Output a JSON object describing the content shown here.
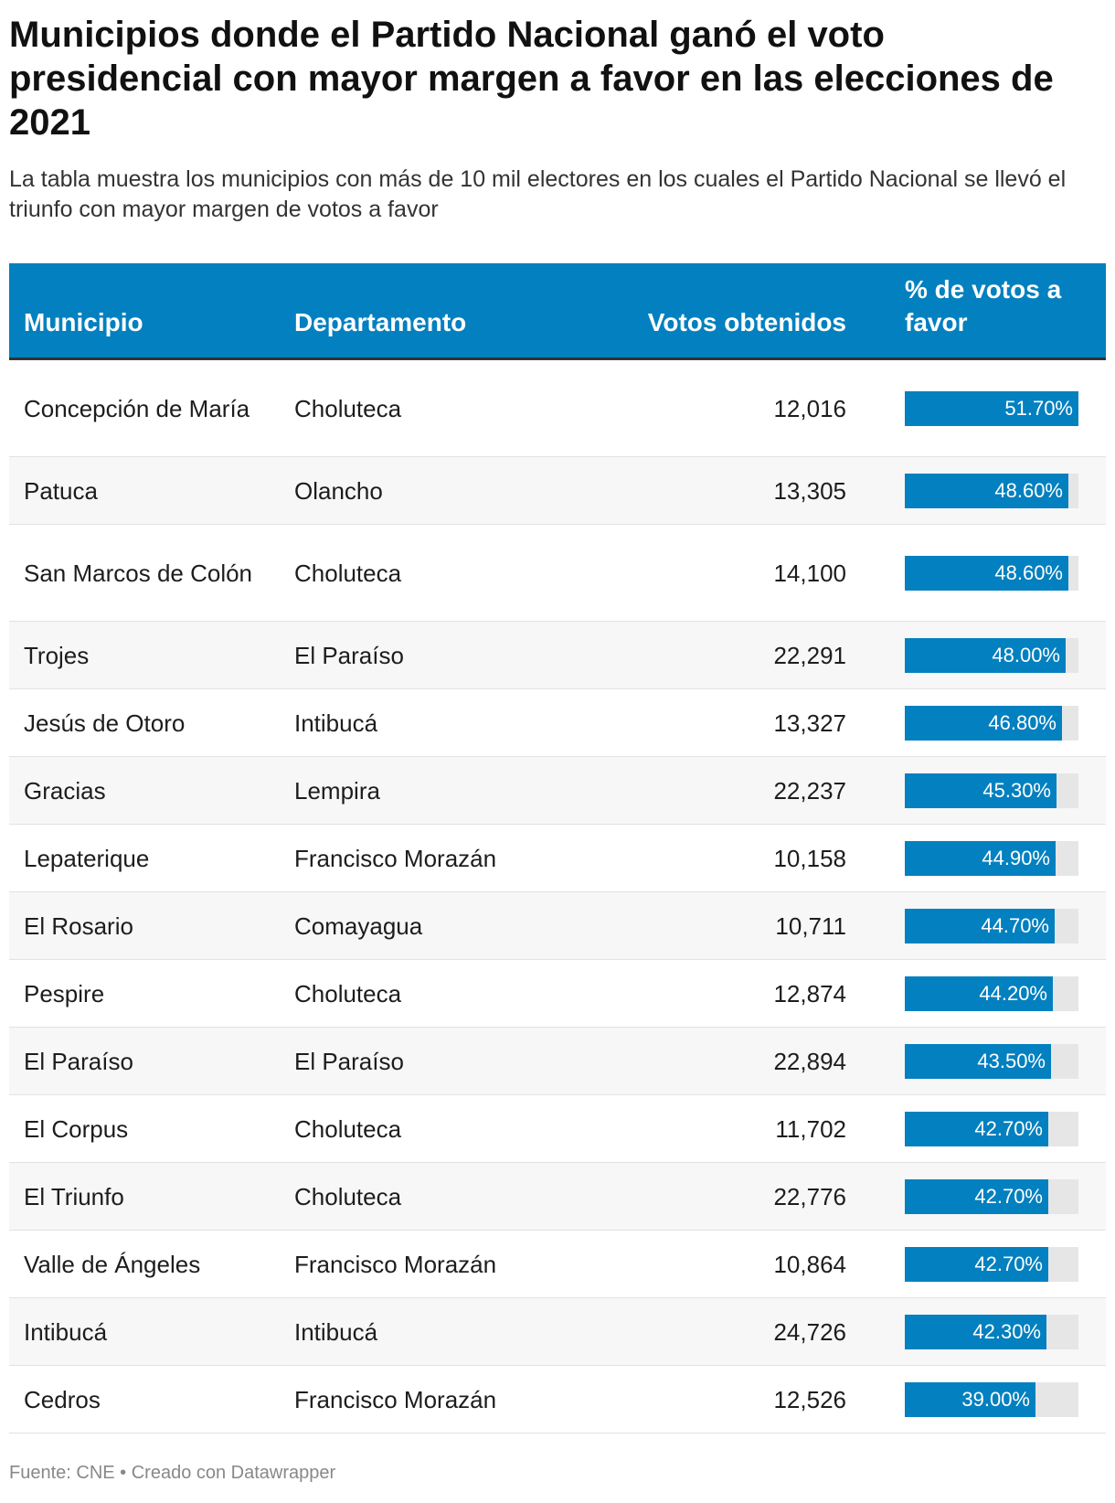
{
  "title": "Municipios donde el Partido Nacional ganó el voto presidencial con mayor margen a favor en las elecciones de 2021",
  "subtitle": "La tabla muestra los municipios con más de 10 mil electores en los cuales el Partido Nacional se llevó el triunfo con mayor margen de votos a favor",
  "footer": "Fuente: CNE • Creado con Datawrapper",
  "colors": {
    "header_bg": "#0380bf",
    "bar": "#0380bf",
    "bar_track": "#e6e6e6"
  },
  "chart_data": {
    "type": "table",
    "columns": [
      "Municipio",
      "Departamento",
      "Votos obtenidos",
      "% de votos a favor"
    ],
    "bar_max_percent": 51.7,
    "rows": [
      {
        "municipio": "Concepción de María",
        "departamento": "Choluteca",
        "votos": "12,016",
        "pct": 51.7,
        "pct_label": "51.70%"
      },
      {
        "municipio": "Patuca",
        "departamento": "Olancho",
        "votos": "13,305",
        "pct": 48.6,
        "pct_label": "48.60%"
      },
      {
        "municipio": "San Marcos de Colón",
        "departamento": "Choluteca",
        "votos": "14,100",
        "pct": 48.6,
        "pct_label": "48.60%"
      },
      {
        "municipio": "Trojes",
        "departamento": "El Paraíso",
        "votos": "22,291",
        "pct": 48.0,
        "pct_label": "48.00%"
      },
      {
        "municipio": "Jesús de Otoro",
        "departamento": "Intibucá",
        "votos": "13,327",
        "pct": 46.8,
        "pct_label": "46.80%"
      },
      {
        "municipio": "Gracias",
        "departamento": "Lempira",
        "votos": "22,237",
        "pct": 45.3,
        "pct_label": "45.30%"
      },
      {
        "municipio": "Lepaterique",
        "departamento": "Francisco Morazán",
        "votos": "10,158",
        "pct": 44.9,
        "pct_label": "44.90%"
      },
      {
        "municipio": "El Rosario",
        "departamento": "Comayagua",
        "votos": "10,711",
        "pct": 44.7,
        "pct_label": "44.70%"
      },
      {
        "municipio": "Pespire",
        "departamento": "Choluteca",
        "votos": "12,874",
        "pct": 44.2,
        "pct_label": "44.20%"
      },
      {
        "municipio": "El Paraíso",
        "departamento": "El Paraíso",
        "votos": "22,894",
        "pct": 43.5,
        "pct_label": "43.50%"
      },
      {
        "municipio": "El Corpus",
        "departamento": "Choluteca",
        "votos": "11,702",
        "pct": 42.7,
        "pct_label": "42.70%"
      },
      {
        "municipio": "El Triunfo",
        "departamento": "Choluteca",
        "votos": "22,776",
        "pct": 42.7,
        "pct_label": "42.70%"
      },
      {
        "municipio": "Valle de Ángeles",
        "departamento": "Francisco Morazán",
        "votos": "10,864",
        "pct": 42.7,
        "pct_label": "42.70%"
      },
      {
        "municipio": "Intibucá",
        "departamento": "Intibucá",
        "votos": "24,726",
        "pct": 42.3,
        "pct_label": "42.30%"
      },
      {
        "municipio": "Cedros",
        "departamento": "Francisco Morazán",
        "votos": "12,526",
        "pct": 39.0,
        "pct_label": "39.00%"
      }
    ]
  }
}
